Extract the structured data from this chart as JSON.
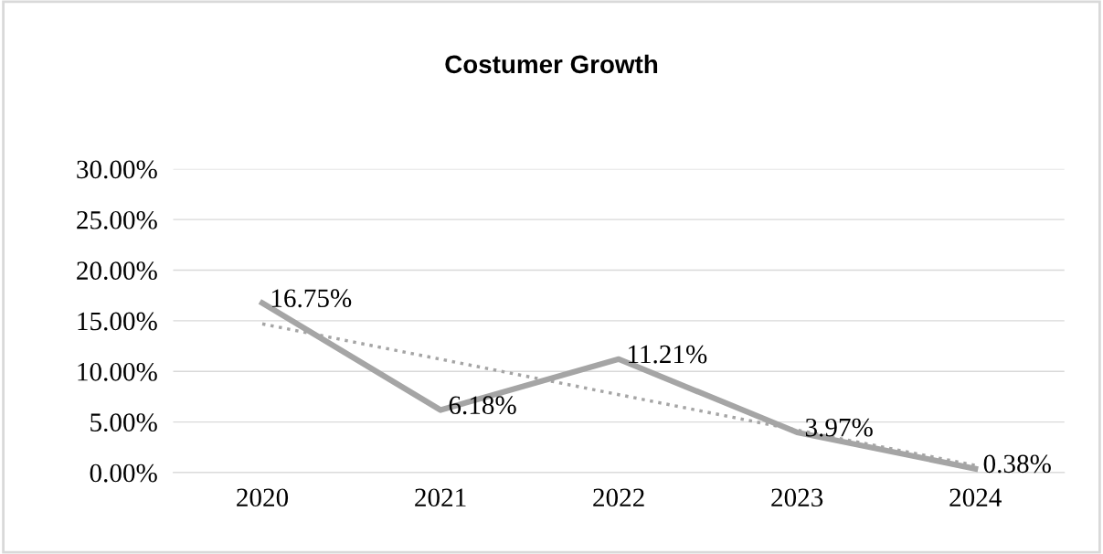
{
  "chart_data": {
    "type": "line",
    "title": "Costumer Growth",
    "categories": [
      "2020",
      "2021",
      "2022",
      "2023",
      "2024"
    ],
    "series": [
      {
        "color": "#a5a5a5",
        "values": [
          16.75,
          6.18,
          11.21,
          3.97,
          0.38
        ],
        "value_labels": [
          "16.75%",
          "6.18%",
          "11.21%",
          "3.97%",
          "0.38%"
        ]
      },
      {
        "type": "line",
        "color": "#a5a5a5",
        "line_style": "dotted",
        "values": [
          14.69,
          11.2,
          7.7,
          4.2,
          0.71
        ]
      }
    ],
    "ylim": [
      0,
      30
    ],
    "yticks": [
      {
        "value": 0,
        "label": "0.00%"
      },
      {
        "value": 5,
        "label": "5.00%"
      },
      {
        "value": 10,
        "label": "10.00%"
      },
      {
        "value": 15,
        "label": "15.00%"
      },
      {
        "value": 20,
        "label": "20.00%"
      },
      {
        "value": 25,
        "label": "25.00%"
      },
      {
        "value": 30,
        "label": "30.00%"
      }
    ],
    "grid": "y",
    "legend": false,
    "marker": "none",
    "line_style": "solid"
  }
}
